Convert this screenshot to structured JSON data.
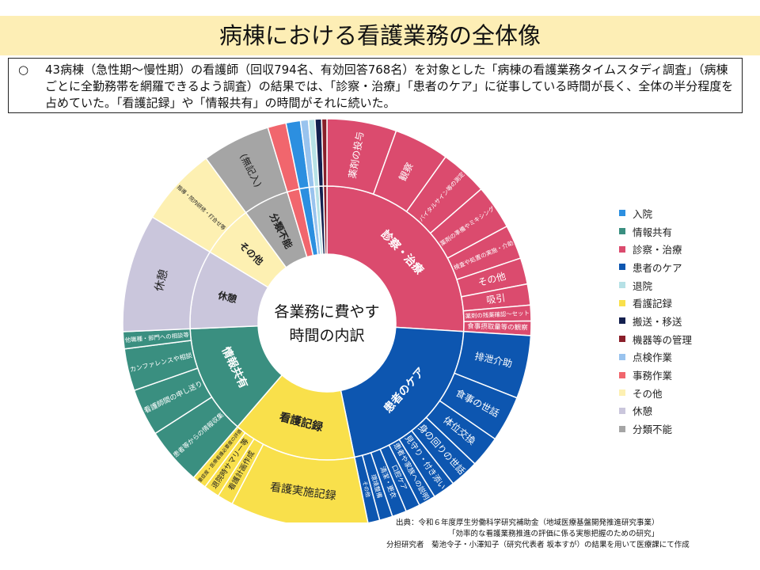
{
  "title": "病棟における看護業務の全体像",
  "summary": {
    "bullet": "○",
    "text": "43病棟（急性期〜慢性期）の看護師（回収794名、有効回答768名）を対象とした「病棟の看護業務タイムスタディ調査」（病棟ごとに全勤務帯を網羅できるよう調査）の結果では、「診察・治療」「患者のケア」に従事している時間が長く、全体の半分程度を占めていた。「看護記録」や「情報共有」の時間がそれに続いた。"
  },
  "chart_data": {
    "type": "sunburst",
    "center_label": [
      "各業務に費やす",
      "時間の内訳"
    ],
    "categories": [
      {
        "name": "診察・治療",
        "label": "診察・治療",
        "color": "#db4b6e",
        "value": 25.0,
        "children": [
          {
            "label": "薬剤の投与",
            "value": 5.3
          },
          {
            "label": "観察",
            "value": 4.2
          },
          {
            "label": "バイタルサイン等の測定",
            "value": 3.6
          },
          {
            "label": "薬剤の準備やミキシング",
            "value": 3.4
          },
          {
            "label": "検査や処置の実施・介助",
            "value": 2.6
          },
          {
            "label": "その他",
            "value": 2.0
          },
          {
            "label": "吸引",
            "value": 1.6
          },
          {
            "label": "薬剤の残薬確認〜セット",
            "value": 1.2
          },
          {
            "label": "食事摂取量等の観察",
            "value": 1.1
          }
        ]
      },
      {
        "name": "患者のケア",
        "label": "患者のケア",
        "color": "#0d56b0",
        "value": 20.0,
        "children": [
          {
            "label": "排泄介助",
            "value": 4.8
          },
          {
            "label": "食事の世話",
            "value": 3.5
          },
          {
            "label": "体位交換",
            "value": 2.4
          },
          {
            "label": "身の回りの世話",
            "value": 2.2
          },
          {
            "label": "見守り・付き添い",
            "value": 1.7
          },
          {
            "label": "患者や家族への説明",
            "value": 1.3
          },
          {
            "label": "口腔ケア",
            "value": 1.1
          },
          {
            "label": "清潔・更衣",
            "value": 1.1
          },
          {
            "label": "環境整備",
            "value": 1.0
          },
          {
            "label": "その他",
            "value": 0.9
          }
        ]
      },
      {
        "name": "看護記録",
        "label": "看護記録",
        "color": "#f9e04b",
        "value": 14.0,
        "children": [
          {
            "label": "看護実施記録",
            "value": 10.5
          },
          {
            "label": "看護計画作成",
            "value": 1.2
          },
          {
            "label": "退院時サマリー等",
            "value": 1.2
          },
          {
            "label": "重症度・医療看護必要度の評価",
            "value": 1.1
          }
        ]
      },
      {
        "name": "情報共有",
        "label": "情報共有",
        "color": "#3a8f80",
        "value": 12.5,
        "children": [
          {
            "label": "患者等からの情報収集",
            "value": 4.4
          },
          {
            "label": "看護師間の申し送り",
            "value": 3.6
          },
          {
            "label": "カンファレンスや相談",
            "value": 3.2
          },
          {
            "label": "他職種・部門への相談等",
            "value": 1.3
          }
        ]
      },
      {
        "name": "休憩",
        "label": "休憩",
        "color": "#cac6dc",
        "value": 9.0,
        "children": [
          {
            "label": "休憩",
            "value": 9.0
          }
        ]
      },
      {
        "name": "その他",
        "label": "その他",
        "color": "#fdf0b2",
        "value": 6.0,
        "children": [
          {
            "label": "指導・院内研修・打合せ等",
            "value": 6.0
          }
        ]
      },
      {
        "name": "分類不能",
        "label": "分類不能",
        "color": "#a5a5a5",
        "value": 5.2,
        "children": [
          {
            "label": "(無記入)",
            "value": 5.2
          }
        ]
      },
      {
        "name": "事務作業",
        "label": "",
        "color": "#f1666d",
        "value": 1.4,
        "children": [
          {
            "label": "",
            "value": 1.4
          }
        ]
      },
      {
        "name": "入院",
        "label": "",
        "color": "#2c8fe0",
        "value": 1.1,
        "children": [
          {
            "label": "",
            "value": 1.1
          }
        ]
      },
      {
        "name": "点検作業",
        "label": "",
        "color": "#99c3ee",
        "value": 0.6,
        "children": [
          {
            "label": "",
            "value": 0.6
          }
        ]
      },
      {
        "name": "退院",
        "label": "",
        "color": "#b6e1e6",
        "value": 0.5,
        "children": [
          {
            "label": "",
            "value": 0.5
          }
        ]
      },
      {
        "name": "搬送・移送",
        "label": "",
        "color": "#14204f",
        "value": 0.5,
        "children": [
          {
            "label": "",
            "value": 0.5
          }
        ]
      },
      {
        "name": "機器等の管理",
        "label": "",
        "color": "#8a1f2a",
        "value": 0.4,
        "children": [
          {
            "label": "",
            "value": 0.4
          }
        ]
      }
    ],
    "legend": [
      {
        "label": "入院",
        "color": "#2c8fe0"
      },
      {
        "label": "情報共有",
        "color": "#3a8f80"
      },
      {
        "label": "診察・治療",
        "color": "#db4b6e"
      },
      {
        "label": "患者のケア",
        "color": "#0d56b0"
      },
      {
        "label": "退院",
        "color": "#b6e1e6"
      },
      {
        "label": "看護記録",
        "color": "#f9e04b"
      },
      {
        "label": "搬送・移送",
        "color": "#14204f"
      },
      {
        "label": "機器等の管理",
        "color": "#8a1f2a"
      },
      {
        "label": "点検作業",
        "color": "#99c3ee"
      },
      {
        "label": "事務作業",
        "color": "#f1666d"
      },
      {
        "label": "その他",
        "color": "#fdf0b2"
      },
      {
        "label": "休憩",
        "color": "#cac6dc"
      },
      {
        "label": "分類不能",
        "color": "#a5a5a5"
      }
    ],
    "legend_position": "right"
  },
  "source": {
    "line1": "出典：令和６年度厚生労働科学研究補助金（地域医療基盤開発推進研究事業）",
    "line2": "「効率的な看護業務推進の評価に係る実態把握のための研究」",
    "line3": "分担研究者　菊池令子・小澤知子（研究代表者 坂本すが）の結果を用いて医療課にて作成"
  }
}
